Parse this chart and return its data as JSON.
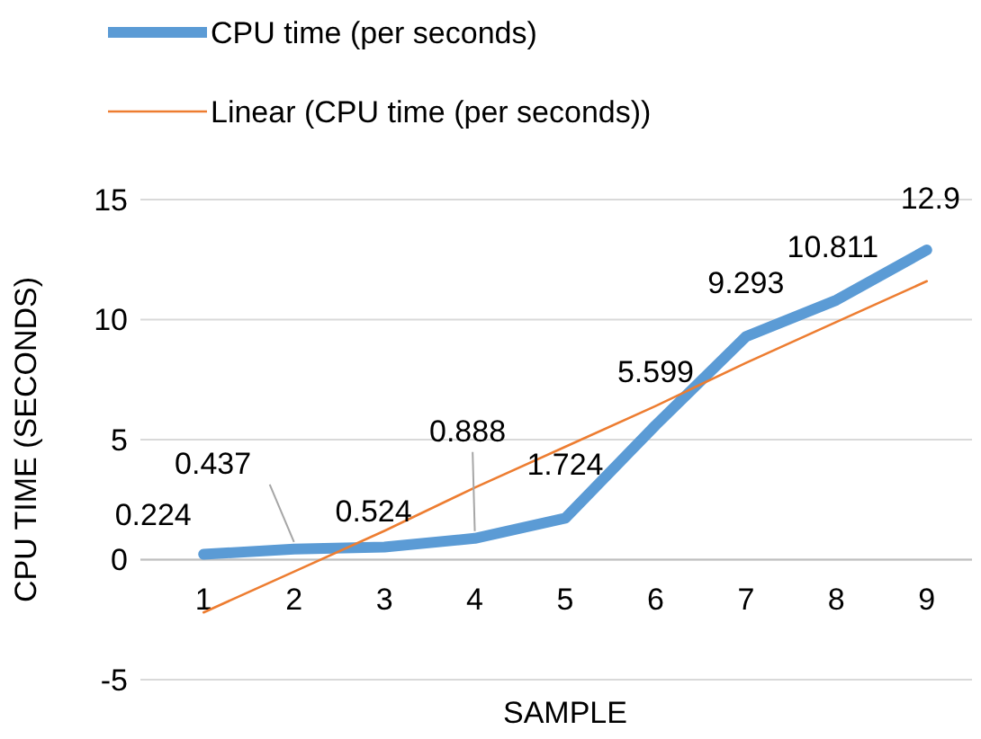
{
  "chart_data": {
    "type": "line",
    "xlabel": "SAMPLE",
    "ylabel": "CPU TIME (SECONDS)",
    "categories": [
      "1",
      "2",
      "3",
      "4",
      "5",
      "6",
      "7",
      "8",
      "9"
    ],
    "series": [
      {
        "name": "CPU time (per seconds)",
        "color": "#5b9bd5",
        "values": [
          0.224,
          0.437,
          0.524,
          0.888,
          1.724,
          5.599,
          9.293,
          10.811,
          12.9
        ],
        "value_labels": [
          "0.224",
          "0.437",
          "0.524",
          "0.888",
          "1.724",
          "5.599",
          "9.293",
          "10.811",
          "12.9"
        ]
      },
      {
        "name": "Linear (CPU time (per seconds))",
        "type": "line",
        "color": "#ed7d31",
        "values": [
          -2.2,
          -0.5,
          1.2,
          3.0,
          4.7,
          6.4,
          8.2,
          9.9,
          11.6
        ]
      }
    ],
    "ylim": [
      -5,
      15
    ],
    "yticks": [
      -5,
      0,
      5,
      10,
      15
    ],
    "grid": "y",
    "legend": "top",
    "marker": "none",
    "line_style": "solid"
  }
}
